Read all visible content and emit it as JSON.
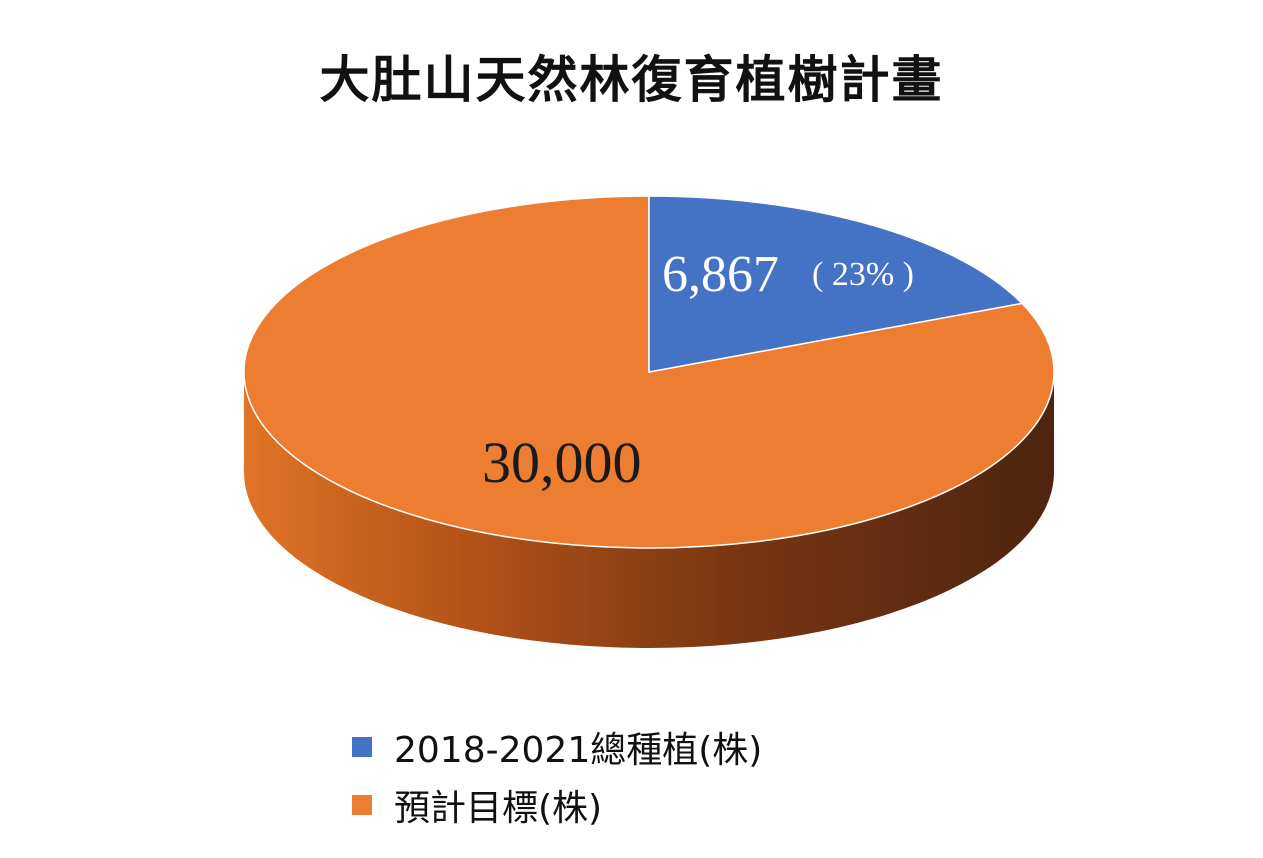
{
  "chart_data": {
    "type": "pie",
    "title": "大肚山天然林復育植樹計畫",
    "legend_position": "bottom",
    "slices": [
      {
        "name": "2018-2021總種植(株)",
        "value": 6867,
        "label": "6,867",
        "percent_label": "( 23% )",
        "color": "#4472C4"
      },
      {
        "name": "預計目標(株)",
        "value": 30000,
        "label": "30,000",
        "color": "#ED7D31"
      }
    ]
  }
}
